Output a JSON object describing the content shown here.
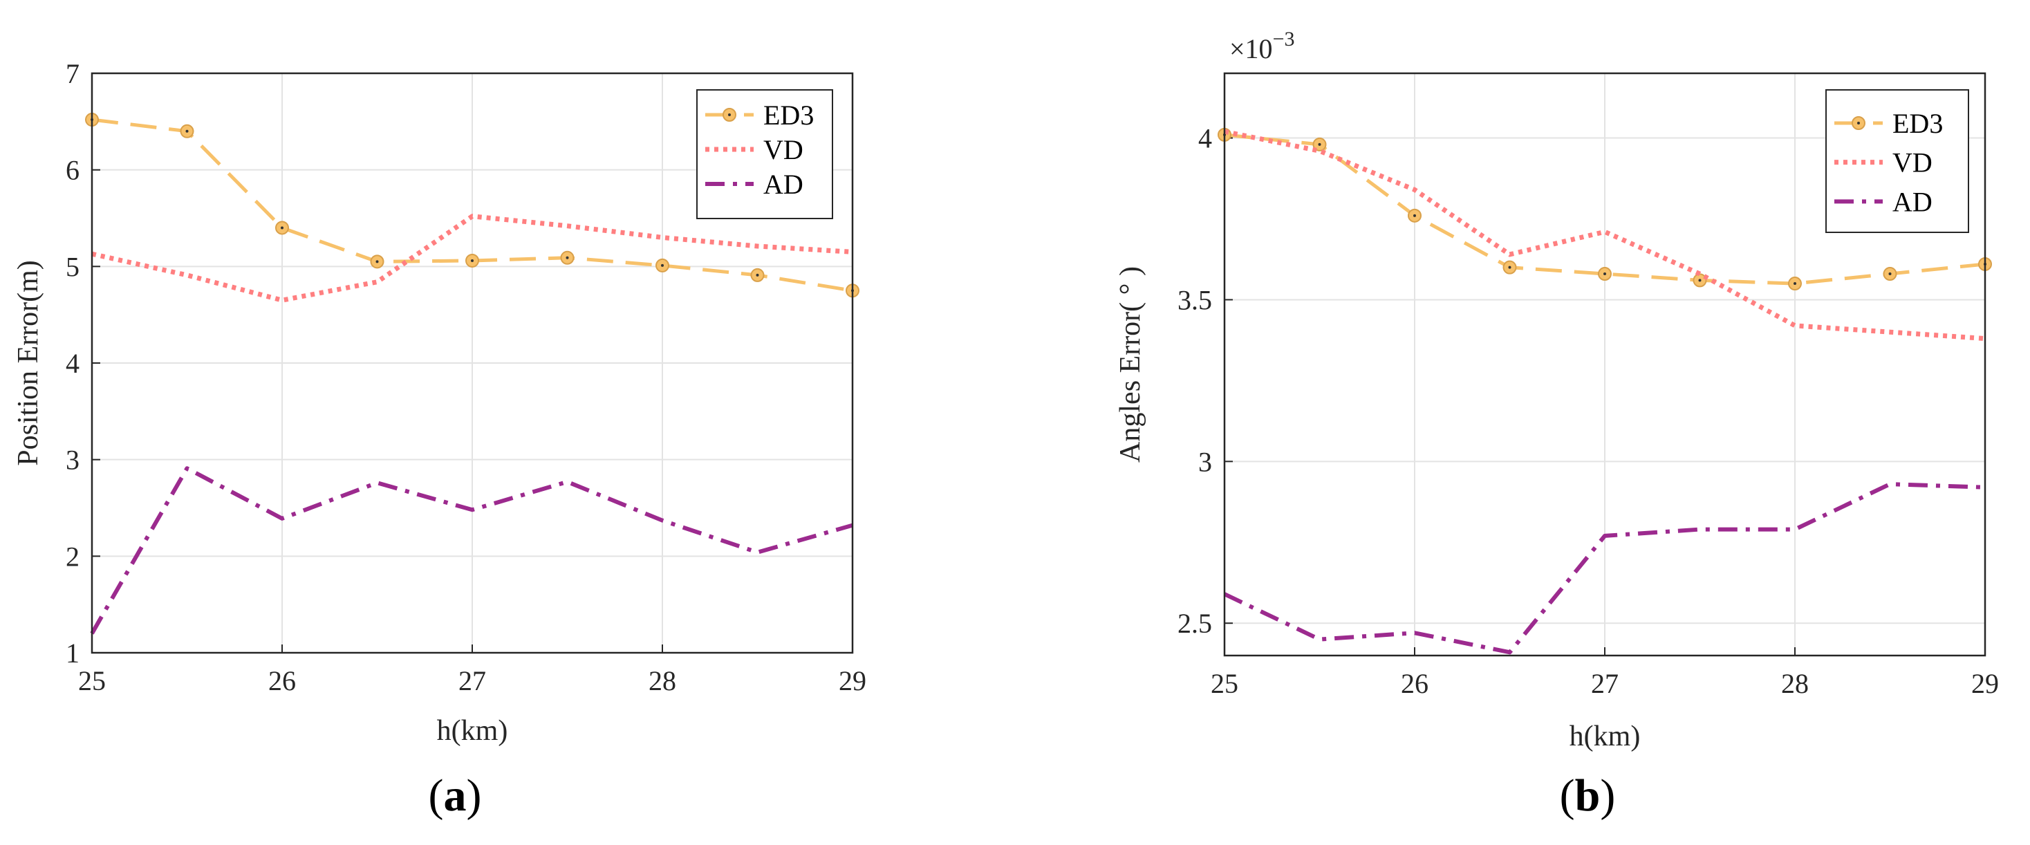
{
  "chart_data": [
    {
      "id": "a",
      "type": "line",
      "caption_label": "a",
      "xlabel": "h(km)",
      "ylabel": "Position Error(m)",
      "xlim": [
        25,
        29
      ],
      "ylim": [
        1,
        7
      ],
      "xticks": [
        "25",
        "26",
        "27",
        "28",
        "29"
      ],
      "yticks": [
        "1",
        "2",
        "3",
        "4",
        "5",
        "6",
        "7"
      ],
      "grid": true,
      "legend_position": "top-right",
      "series": [
        {
          "name": "ED3",
          "color": "#F7C16A",
          "style": "dashed-marker",
          "x": [
            25,
            25.5,
            26,
            26.5,
            27,
            27.5,
            28,
            28.5,
            29
          ],
          "y": [
            6.52,
            6.4,
            5.4,
            5.05,
            5.06,
            5.09,
            5.01,
            4.91,
            4.75
          ]
        },
        {
          "name": "VD",
          "color": "#FF7F80",
          "style": "dotted",
          "x": [
            25,
            25.5,
            26,
            26.5,
            27,
            27.5,
            28,
            28.5,
            29
          ],
          "y": [
            5.13,
            4.91,
            4.65,
            4.84,
            5.52,
            5.42,
            5.3,
            5.21,
            5.15
          ]
        },
        {
          "name": "AD",
          "color": "#9C2A8E",
          "style": "dashdot",
          "x": [
            25,
            25.5,
            26,
            26.5,
            27,
            27.5,
            28,
            28.5,
            29
          ],
          "y": [
            1.2,
            2.91,
            2.39,
            2.76,
            2.48,
            2.77,
            2.37,
            2.04,
            2.32
          ]
        }
      ]
    },
    {
      "id": "b",
      "type": "line",
      "caption_label": "b",
      "xlabel": "h(km)",
      "ylabel": "Angles Error( ° )",
      "scale_label": "×10",
      "scale_exponent": "−3",
      "xlim": [
        25,
        29
      ],
      "ylim": [
        2.4,
        4.2
      ],
      "xticks": [
        "25",
        "26",
        "27",
        "28",
        "29"
      ],
      "yticks": [
        "2.5",
        "3",
        "3.5",
        "4"
      ],
      "ytick_values": [
        2.5,
        3,
        3.5,
        4
      ],
      "grid": true,
      "legend_position": "top-right",
      "series": [
        {
          "name": "ED3",
          "color": "#F7C16A",
          "style": "dashed-marker",
          "x": [
            25,
            25.5,
            26,
            26.5,
            27,
            27.5,
            28,
            28.5,
            29
          ],
          "y": [
            4.01,
            3.98,
            3.76,
            3.6,
            3.58,
            3.56,
            3.55,
            3.58,
            3.61
          ]
        },
        {
          "name": "VD",
          "color": "#FF7F80",
          "style": "dotted",
          "x": [
            25,
            25.5,
            26,
            26.5,
            27,
            27.5,
            28,
            28.5,
            29
          ],
          "y": [
            4.02,
            3.96,
            3.84,
            3.64,
            3.71,
            3.58,
            3.42,
            3.4,
            3.38
          ]
        },
        {
          "name": "AD",
          "color": "#9C2A8E",
          "style": "dashdot",
          "x": [
            25,
            25.5,
            26,
            26.5,
            27,
            27.5,
            28,
            28.5,
            29
          ],
          "y": [
            2.59,
            2.45,
            2.47,
            2.41,
            2.77,
            2.79,
            2.79,
            2.93,
            2.92
          ]
        }
      ]
    }
  ]
}
